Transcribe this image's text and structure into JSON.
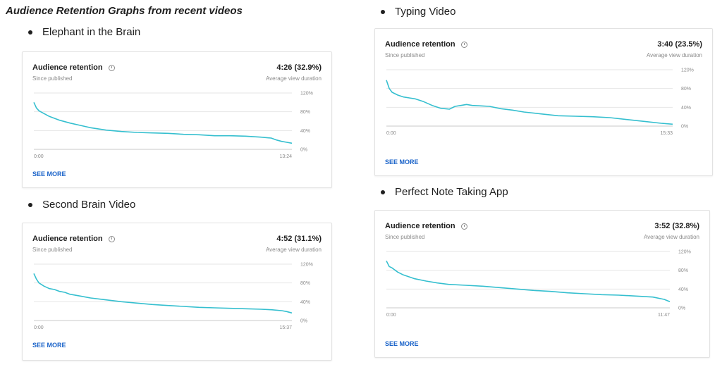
{
  "heading": "Audience Retention Graphs from recent videos",
  "colors": {
    "line": "#35bfcf",
    "grid": "#e6e6e6",
    "link": "#1a63c9"
  },
  "cards": [
    {
      "bullet": "Elephant in the Brain",
      "title": "Audience retention",
      "subtitle": "Since published",
      "value": "4:26 (32.9%)",
      "value_label": "Average view duration",
      "link": "SEE MORE",
      "x_start_label": "0:00",
      "x_end_label": "13:24",
      "y_ticks": [
        "120%",
        "80%",
        "40%",
        "0%"
      ]
    },
    {
      "bullet": "Second Brain Video",
      "title": "Audience retention",
      "subtitle": "Since published",
      "value": "4:52 (31.1%)",
      "value_label": "Average view duration",
      "link": "SEE MORE",
      "x_start_label": "0:00",
      "x_end_label": "15:37",
      "y_ticks": [
        "120%",
        "80%",
        "40%",
        "0%"
      ]
    },
    {
      "bullet": "Typing Video",
      "title": "Audience retention",
      "subtitle": "Since published",
      "value": "3:40 (23.5%)",
      "value_label": "Average view duration",
      "link": "SEE MORE",
      "x_start_label": "0:00",
      "x_end_label": "15:33",
      "y_ticks": [
        "120%",
        "80%",
        "40%",
        "0%"
      ]
    },
    {
      "bullet": "Perfect Note Taking App",
      "title": "Audience retention",
      "subtitle": "Since published",
      "value": "3:52 (32.8%)",
      "value_label": "Average view duration",
      "link": "SEE MORE",
      "x_start_label": "0:00",
      "x_end_label": "11:47",
      "y_ticks": [
        "120%",
        "80%",
        "40%",
        "0%"
      ]
    }
  ],
  "chart_data": [
    {
      "type": "line",
      "title": "Audience retention",
      "ylim": [
        0,
        120
      ],
      "xlim": [
        0,
        100
      ],
      "grid": true,
      "series": [
        {
          "x": [
            0,
            1,
            2,
            4,
            6,
            8,
            10,
            14,
            18,
            22,
            28,
            34,
            40,
            46,
            52,
            58,
            64,
            70,
            76,
            82,
            88,
            92,
            94,
            96,
            98,
            100
          ],
          "values": [
            100,
            88,
            82,
            76,
            70,
            66,
            62,
            56,
            51,
            46,
            41,
            38,
            36,
            35,
            34,
            32,
            31,
            29,
            29,
            28,
            26,
            24,
            20,
            17,
            15,
            13
          ]
        }
      ]
    },
    {
      "type": "line",
      "title": "Audience retention",
      "ylim": [
        0,
        120
      ],
      "xlim": [
        0,
        100
      ],
      "grid": true,
      "series": [
        {
          "x": [
            0,
            1,
            2,
            4,
            6,
            8,
            10,
            12,
            14,
            18,
            22,
            28,
            34,
            40,
            46,
            52,
            58,
            64,
            70,
            76,
            82,
            88,
            92,
            96,
            98,
            100
          ],
          "values": [
            100,
            88,
            80,
            73,
            68,
            66,
            62,
            60,
            56,
            52,
            48,
            44,
            40,
            37,
            34,
            32,
            30,
            28,
            27,
            26,
            25,
            24,
            23,
            21,
            19,
            16
          ]
        }
      ]
    },
    {
      "type": "line",
      "title": "Audience retention",
      "ylim": [
        0,
        120
      ],
      "xlim": [
        0,
        100
      ],
      "grid": true,
      "series": [
        {
          "x": [
            0,
            1,
            2,
            4,
            6,
            8,
            10,
            13,
            16,
            19,
            22,
            24,
            26,
            28,
            30,
            33,
            36,
            40,
            44,
            48,
            54,
            60,
            66,
            72,
            78,
            84,
            90,
            96,
            100
          ],
          "values": [
            98,
            80,
            72,
            66,
            62,
            60,
            58,
            52,
            44,
            38,
            36,
            42,
            44,
            46,
            44,
            43,
            42,
            37,
            34,
            30,
            26,
            22,
            21,
            20,
            18,
            14,
            10,
            6,
            4
          ]
        }
      ]
    },
    {
      "type": "line",
      "title": "Audience retention",
      "ylim": [
        0,
        120
      ],
      "xlim": [
        0,
        100
      ],
      "grid": true,
      "series": [
        {
          "x": [
            0,
            1,
            2,
            4,
            6,
            8,
            10,
            14,
            18,
            22,
            28,
            34,
            40,
            46,
            52,
            58,
            64,
            70,
            76,
            82,
            88,
            94,
            98,
            100
          ],
          "values": [
            100,
            88,
            85,
            76,
            70,
            66,
            62,
            57,
            53,
            50,
            48,
            46,
            43,
            40,
            37,
            35,
            32,
            30,
            28,
            27,
            25,
            23,
            18,
            13
          ]
        }
      ]
    }
  ]
}
